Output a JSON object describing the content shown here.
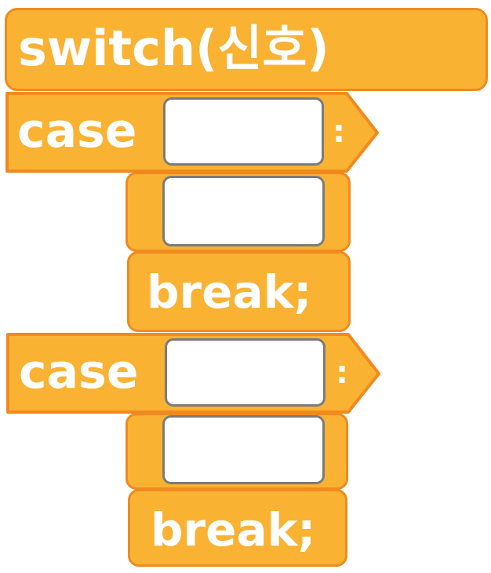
{
  "switch_block": {
    "label": "switch(신호)"
  },
  "cases": [
    {
      "keyword": "case",
      "colon": ":",
      "break_label": "break;"
    },
    {
      "keyword": "case",
      "colon": ":",
      "break_label": "break;"
    }
  ],
  "colors": {
    "block_fill": "#f9b232",
    "block_border": "#f08a1f",
    "text": "#ffffff",
    "slot_fill": "#ffffff",
    "slot_border": "#7b7b7b"
  }
}
